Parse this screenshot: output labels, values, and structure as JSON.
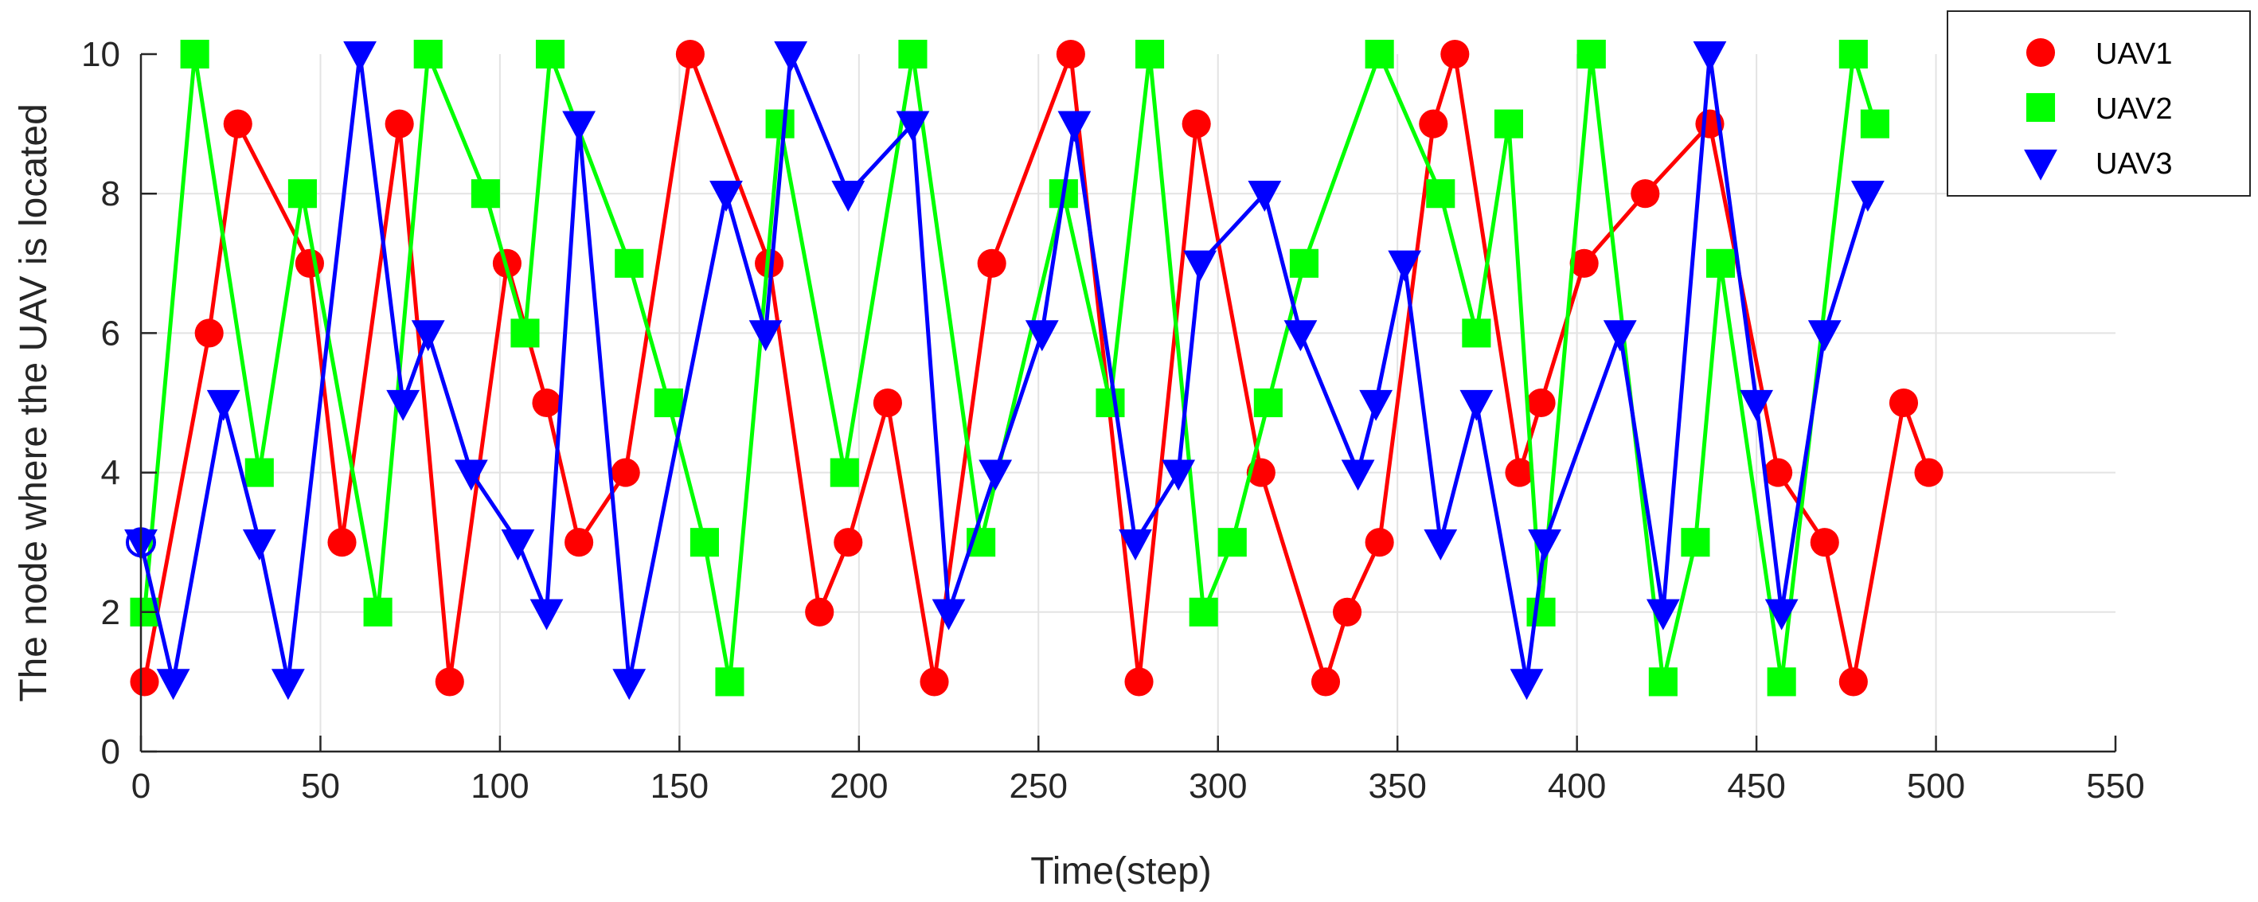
{
  "chart_data": {
    "type": "line",
    "xlabel": "Time(step)",
    "ylabel": "The node where the UAV is located",
    "xlim": [
      0,
      550
    ],
    "ylim": [
      0,
      10
    ],
    "xticks": [
      0,
      50,
      100,
      150,
      200,
      250,
      300,
      350,
      400,
      450,
      500,
      550
    ],
    "yticks": [
      0,
      2,
      4,
      6,
      8,
      10
    ],
    "grid": true,
    "legend_position": "top-right",
    "series": [
      {
        "name": "UAV1",
        "color": "#ff0000",
        "marker": "circle",
        "x": [
          1,
          19,
          27,
          47,
          56,
          72,
          86,
          102,
          113,
          122,
          135,
          153,
          175,
          189,
          197,
          208,
          221,
          237,
          259,
          278,
          294,
          312,
          330,
          336,
          345,
          360,
          366,
          384,
          390,
          402,
          419,
          437,
          456,
          469,
          477,
          491,
          498
        ],
        "y": [
          1,
          6,
          9,
          7,
          3,
          9,
          1,
          7,
          5,
          3,
          4,
          10,
          7,
          2,
          3,
          5,
          1,
          7,
          10,
          1,
          9,
          4,
          1,
          2,
          3,
          9,
          10,
          4,
          5,
          7,
          8,
          9,
          4,
          3,
          1,
          5,
          4
        ]
      },
      {
        "name": "UAV2",
        "color": "#00ff00",
        "marker": "square",
        "x": [
          1,
          15,
          33,
          45,
          66,
          80,
          96,
          107,
          114,
          136,
          147,
          157,
          164,
          178,
          196,
          215,
          234,
          257,
          270,
          281,
          296,
          304,
          314,
          324,
          345,
          362,
          372,
          381,
          390,
          404,
          424,
          433,
          440,
          457,
          477,
          483
        ],
        "y": [
          2,
          10,
          4,
          8,
          2,
          10,
          8,
          6,
          10,
          7,
          5,
          3,
          1,
          9,
          4,
          10,
          3,
          8,
          5,
          10,
          2,
          3,
          5,
          7,
          10,
          8,
          6,
          9,
          2,
          10,
          1,
          3,
          7,
          1,
          10,
          9
        ],
        "extra_points": [
          {
            "x": 404,
            "y": 10
          }
        ]
      },
      {
        "name": "UAV3",
        "color": "#0000ff",
        "marker": "triangle-down",
        "x": [
          0,
          9,
          23,
          33,
          41,
          61,
          73,
          80,
          92,
          105,
          113,
          122,
          136,
          163,
          174,
          181,
          197,
          215,
          225,
          238,
          251,
          260,
          277,
          289,
          295,
          313,
          323,
          339,
          344,
          352,
          362,
          372,
          386,
          391,
          412,
          424,
          437,
          450,
          457,
          469,
          481
        ],
        "y": [
          3,
          1,
          5,
          3,
          1,
          10,
          5,
          6,
          4,
          3,
          2,
          9,
          1,
          8,
          6,
          10,
          8,
          9,
          2,
          4,
          6,
          9,
          3,
          4,
          7,
          8,
          6,
          4,
          5,
          7,
          3,
          5,
          1,
          3,
          6,
          2,
          10,
          5,
          2,
          6,
          8
        ],
        "start_marker": {
          "x": 0,
          "y": 3,
          "shape": "open-circle"
        }
      }
    ]
  }
}
